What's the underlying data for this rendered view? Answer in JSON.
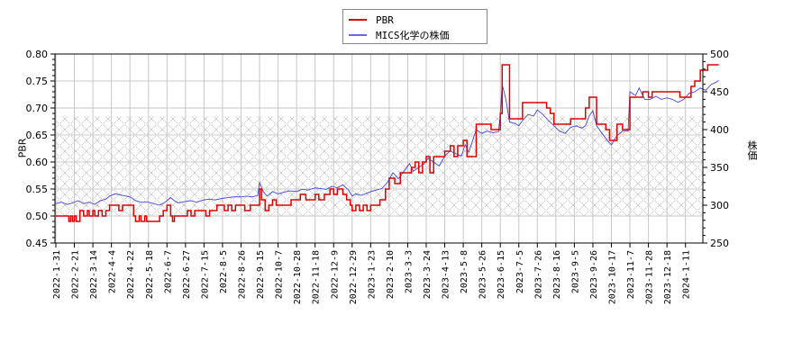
{
  "legend": {
    "items": [
      {
        "label": "PBR",
        "color": "#dd0000"
      },
      {
        "label": "MICS化学の株価",
        "color": "#4444dd"
      }
    ]
  },
  "axes": {
    "left_title": "PBR",
    "right_title": "株価"
  },
  "chart_data": {
    "type": "line",
    "title": "",
    "xlabel": "",
    "ylabel": "PBR",
    "y2label": "株価",
    "ylim": [
      0.45,
      0.8
    ],
    "y2lim": [
      250,
      500
    ],
    "yticks": [
      "0.45",
      "0.50",
      "0.55",
      "0.60",
      "0.65",
      "0.70",
      "0.75",
      "0.80"
    ],
    "y2ticks": [
      "250",
      "300",
      "350",
      "400",
      "450",
      "500"
    ],
    "grid": true,
    "hatched_band": {
      "y_from": 0.5,
      "y_to": 0.685
    },
    "legend_position": "top-center",
    "xticks": [
      "2022-1-31",
      "2022-2-21",
      "2022-3-14",
      "2022-4-4",
      "2022-4-22",
      "2022-5-18",
      "2022-6-7",
      "2022-6-27",
      "2022-7-15",
      "2022-8-5",
      "2022-8-26",
      "2022-9-15",
      "2022-10-7",
      "2022-10-28",
      "2022-11-18",
      "2022-12-9",
      "2022-12-29",
      "2023-1-23",
      "2023-2-10",
      "2023-3-3",
      "2023-3-24",
      "2023-4-13",
      "2023-5-8",
      "2023-5-26",
      "2023-6-15",
      "2023-7-5",
      "2023-7-26",
      "2023-8-16",
      "2023-9-5",
      "2023-9-26",
      "2023-10-17",
      "2023-11-7",
      "2023-11-28",
      "2023-12-18",
      "2024-1-11"
    ],
    "series": [
      {
        "name": "PBR",
        "axis": "left",
        "color": "#dd0000",
        "points": [
          [
            0,
            0.5
          ],
          [
            0.6,
            0.5
          ],
          [
            0.7,
            0.49
          ],
          [
            0.8,
            0.5
          ],
          [
            0.9,
            0.49
          ],
          [
            1.0,
            0.5
          ],
          [
            1.1,
            0.49
          ],
          [
            1.3,
            0.51
          ],
          [
            1.5,
            0.5
          ],
          [
            1.7,
            0.51
          ],
          [
            1.8,
            0.5
          ],
          [
            2.0,
            0.51
          ],
          [
            2.1,
            0.5
          ],
          [
            2.3,
            0.51
          ],
          [
            2.5,
            0.5
          ],
          [
            2.7,
            0.51
          ],
          [
            2.9,
            0.52
          ],
          [
            3.3,
            0.52
          ],
          [
            3.4,
            0.51
          ],
          [
            3.6,
            0.52
          ],
          [
            4.0,
            0.52
          ],
          [
            4.2,
            0.5
          ],
          [
            4.3,
            0.49
          ],
          [
            4.5,
            0.5
          ],
          [
            4.6,
            0.49
          ],
          [
            4.8,
            0.5
          ],
          [
            4.9,
            0.49
          ],
          [
            5.5,
            0.49
          ],
          [
            5.6,
            0.5
          ],
          [
            5.8,
            0.51
          ],
          [
            6.0,
            0.52
          ],
          [
            6.2,
            0.5
          ],
          [
            6.3,
            0.49
          ],
          [
            6.4,
            0.5
          ],
          [
            6.6,
            0.5
          ],
          [
            7.0,
            0.5
          ],
          [
            7.1,
            0.51
          ],
          [
            7.3,
            0.5
          ],
          [
            7.5,
            0.51
          ],
          [
            8.0,
            0.51
          ],
          [
            8.1,
            0.5
          ],
          [
            8.3,
            0.51
          ],
          [
            8.6,
            0.51
          ],
          [
            8.7,
            0.52
          ],
          [
            9.0,
            0.52
          ],
          [
            9.1,
            0.51
          ],
          [
            9.3,
            0.52
          ],
          [
            9.5,
            0.51
          ],
          [
            9.7,
            0.52
          ],
          [
            10.0,
            0.52
          ],
          [
            10.2,
            0.51
          ],
          [
            10.5,
            0.52
          ],
          [
            10.8,
            0.52
          ],
          [
            11.0,
            0.55
          ],
          [
            11.1,
            0.53
          ],
          [
            11.3,
            0.51
          ],
          [
            11.5,
            0.52
          ],
          [
            11.7,
            0.53
          ],
          [
            11.9,
            0.52
          ],
          [
            12.5,
            0.52
          ],
          [
            12.7,
            0.53
          ],
          [
            13.0,
            0.53
          ],
          [
            13.2,
            0.54
          ],
          [
            13.5,
            0.53
          ],
          [
            14.0,
            0.54
          ],
          [
            14.2,
            0.53
          ],
          [
            14.5,
            0.54
          ],
          [
            14.8,
            0.55
          ],
          [
            15.0,
            0.54
          ],
          [
            15.2,
            0.55
          ],
          [
            15.5,
            0.54
          ],
          [
            15.7,
            0.53
          ],
          [
            15.9,
            0.52
          ],
          [
            16.0,
            0.51
          ],
          [
            16.2,
            0.52
          ],
          [
            16.4,
            0.51
          ],
          [
            16.6,
            0.52
          ],
          [
            16.8,
            0.51
          ],
          [
            17.0,
            0.52
          ],
          [
            17.3,
            0.52
          ],
          [
            17.5,
            0.53
          ],
          [
            17.8,
            0.55
          ],
          [
            18.0,
            0.57
          ],
          [
            18.3,
            0.56
          ],
          [
            18.6,
            0.58
          ],
          [
            19.0,
            0.58
          ],
          [
            19.2,
            0.59
          ],
          [
            19.4,
            0.6
          ],
          [
            19.6,
            0.58
          ],
          [
            19.8,
            0.6
          ],
          [
            20.0,
            0.61
          ],
          [
            20.2,
            0.58
          ],
          [
            20.4,
            0.61
          ],
          [
            20.7,
            0.61
          ],
          [
            21.0,
            0.62
          ],
          [
            21.3,
            0.63
          ],
          [
            21.5,
            0.61
          ],
          [
            21.7,
            0.63
          ],
          [
            22.0,
            0.64
          ],
          [
            22.2,
            0.61
          ],
          [
            22.6,
            0.61
          ],
          [
            22.7,
            0.67
          ],
          [
            23.0,
            0.67
          ],
          [
            23.5,
            0.66
          ],
          [
            23.9,
            0.66
          ],
          [
            24.0,
            0.69
          ],
          [
            24.1,
            0.78
          ],
          [
            24.4,
            0.78
          ],
          [
            24.5,
            0.68
          ],
          [
            25.0,
            0.68
          ],
          [
            25.2,
            0.71
          ],
          [
            25.8,
            0.71
          ],
          [
            26.2,
            0.71
          ],
          [
            26.5,
            0.7
          ],
          [
            26.7,
            0.69
          ],
          [
            26.9,
            0.67
          ],
          [
            27.5,
            0.67
          ],
          [
            27.8,
            0.68
          ],
          [
            28.4,
            0.68
          ],
          [
            28.6,
            0.7
          ],
          [
            28.8,
            0.72
          ],
          [
            29.0,
            0.72
          ],
          [
            29.2,
            0.67
          ],
          [
            29.5,
            0.67
          ],
          [
            29.7,
            0.66
          ],
          [
            29.9,
            0.64
          ],
          [
            30.2,
            0.64
          ],
          [
            30.3,
            0.67
          ],
          [
            30.6,
            0.66
          ],
          [
            30.9,
            0.66
          ],
          [
            31.0,
            0.72
          ],
          [
            31.5,
            0.72
          ],
          [
            31.7,
            0.73
          ],
          [
            32.0,
            0.72
          ],
          [
            32.2,
            0.73
          ],
          [
            33.0,
            0.73
          ],
          [
            33.5,
            0.73
          ],
          [
            33.7,
            0.72
          ],
          [
            34.0,
            0.72
          ],
          [
            34.3,
            0.74
          ],
          [
            34.5,
            0.75
          ],
          [
            34.8,
            0.77
          ],
          [
            35.2,
            0.78
          ],
          [
            35.8,
            0.78
          ]
        ]
      },
      {
        "name": "MICS化学の株価",
        "axis": "right",
        "color": "#4444dd",
        "points": [
          [
            0,
            302
          ],
          [
            0.3,
            304
          ],
          [
            0.6,
            301
          ],
          [
            0.9,
            303
          ],
          [
            1.2,
            306
          ],
          [
            1.5,
            302
          ],
          [
            1.8,
            304
          ],
          [
            2.1,
            301
          ],
          [
            2.4,
            306
          ],
          [
            2.7,
            308
          ],
          [
            2.9,
            312
          ],
          [
            3.2,
            315
          ],
          [
            3.6,
            313
          ],
          [
            4.0,
            311
          ],
          [
            4.3,
            306
          ],
          [
            4.6,
            304
          ],
          [
            5.0,
            304
          ],
          [
            5.3,
            302
          ],
          [
            5.6,
            300
          ],
          [
            5.9,
            304
          ],
          [
            6.2,
            310
          ],
          [
            6.4,
            306
          ],
          [
            6.6,
            303
          ],
          [
            7.0,
            305
          ],
          [
            7.3,
            306
          ],
          [
            7.6,
            304
          ],
          [
            8.0,
            307
          ],
          [
            8.3,
            308
          ],
          [
            8.6,
            307
          ],
          [
            9.0,
            309
          ],
          [
            9.3,
            310
          ],
          [
            9.6,
            311
          ],
          [
            10.0,
            311
          ],
          [
            10.3,
            312
          ],
          [
            10.6,
            311
          ],
          [
            10.9,
            313
          ],
          [
            11.0,
            330
          ],
          [
            11.2,
            318
          ],
          [
            11.4,
            312
          ],
          [
            11.7,
            318
          ],
          [
            12.0,
            315
          ],
          [
            12.3,
            317
          ],
          [
            12.6,
            319
          ],
          [
            13.0,
            318
          ],
          [
            13.3,
            321
          ],
          [
            13.6,
            320
          ],
          [
            14.0,
            323
          ],
          [
            14.3,
            322
          ],
          [
            14.6,
            321
          ],
          [
            14.9,
            325
          ],
          [
            15.2,
            323
          ],
          [
            15.5,
            327
          ],
          [
            15.8,
            320
          ],
          [
            16.0,
            312
          ],
          [
            16.2,
            315
          ],
          [
            16.5,
            313
          ],
          [
            16.8,
            316
          ],
          [
            17.0,
            318
          ],
          [
            17.3,
            320
          ],
          [
            17.6,
            322
          ],
          [
            17.9,
            330
          ],
          [
            18.2,
            343
          ],
          [
            18.5,
            335
          ],
          [
            18.8,
            345
          ],
          [
            19.1,
            355
          ],
          [
            19.3,
            345
          ],
          [
            19.6,
            350
          ],
          [
            19.9,
            355
          ],
          [
            20.1,
            362
          ],
          [
            20.4,
            357
          ],
          [
            20.7,
            352
          ],
          [
            21.0,
            365
          ],
          [
            21.3,
            372
          ],
          [
            21.6,
            368
          ],
          [
            21.9,
            365
          ],
          [
            22.1,
            380
          ],
          [
            22.3,
            370
          ],
          [
            22.7,
            400
          ],
          [
            23.0,
            395
          ],
          [
            23.3,
            398
          ],
          [
            23.6,
            396
          ],
          [
            23.9,
            397
          ],
          [
            24.0,
            420
          ],
          [
            24.1,
            460
          ],
          [
            24.3,
            440
          ],
          [
            24.5,
            410
          ],
          [
            24.8,
            408
          ],
          [
            25.0,
            405
          ],
          [
            25.2,
            412
          ],
          [
            25.5,
            420
          ],
          [
            25.8,
            418
          ],
          [
            26.0,
            426
          ],
          [
            26.3,
            420
          ],
          [
            26.6,
            412
          ],
          [
            26.9,
            405
          ],
          [
            27.2,
            398
          ],
          [
            27.5,
            395
          ],
          [
            27.8,
            403
          ],
          [
            28.1,
            405
          ],
          [
            28.4,
            402
          ],
          [
            28.6,
            405
          ],
          [
            28.8,
            418
          ],
          [
            29.0,
            425
          ],
          [
            29.2,
            405
          ],
          [
            29.5,
            395
          ],
          [
            29.8,
            385
          ],
          [
            30.0,
            380
          ],
          [
            30.3,
            392
          ],
          [
            30.6,
            398
          ],
          [
            30.9,
            398
          ],
          [
            31.0,
            450
          ],
          [
            31.3,
            445
          ],
          [
            31.5,
            455
          ],
          [
            31.8,
            440
          ],
          [
            32.1,
            440
          ],
          [
            32.4,
            444
          ],
          [
            32.7,
            440
          ],
          [
            33.0,
            442
          ],
          [
            33.3,
            440
          ],
          [
            33.6,
            436
          ],
          [
            33.9,
            440
          ],
          [
            34.2,
            448
          ],
          [
            34.5,
            450
          ],
          [
            34.8,
            455
          ],
          [
            35.1,
            452
          ],
          [
            35.4,
            460
          ],
          [
            35.6,
            462
          ],
          [
            35.8,
            465
          ]
        ]
      }
    ]
  }
}
